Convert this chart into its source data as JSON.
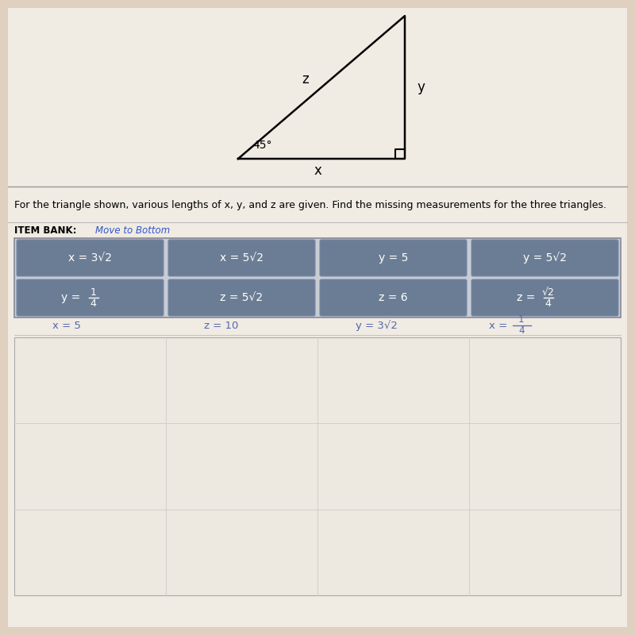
{
  "bg_color": "#dfd0c0",
  "content_bg": "#f0ebe3",
  "instruction_text": "For the triangle shown, various lengths of x, y, and z are given. Find the missing measurements for the three triangles.",
  "item_bank_label": "ITEM BANK:",
  "item_bank_link": "Move to Bottom",
  "bank_box_color": "#6b7d94",
  "bank_box_border": "#a0a8b0",
  "bank_items_row1": [
    "x = 3√2",
    "x = 5√2",
    "y = 5",
    "y = 5√2"
  ],
  "bottom_labels": [
    "x = 5",
    "z = 10",
    "y = 3√2",
    "x ="
  ],
  "bottom_label_color": "#5566aa",
  "divider_color": "#bbbbbb",
  "answer_box_color": "#ede8e0"
}
